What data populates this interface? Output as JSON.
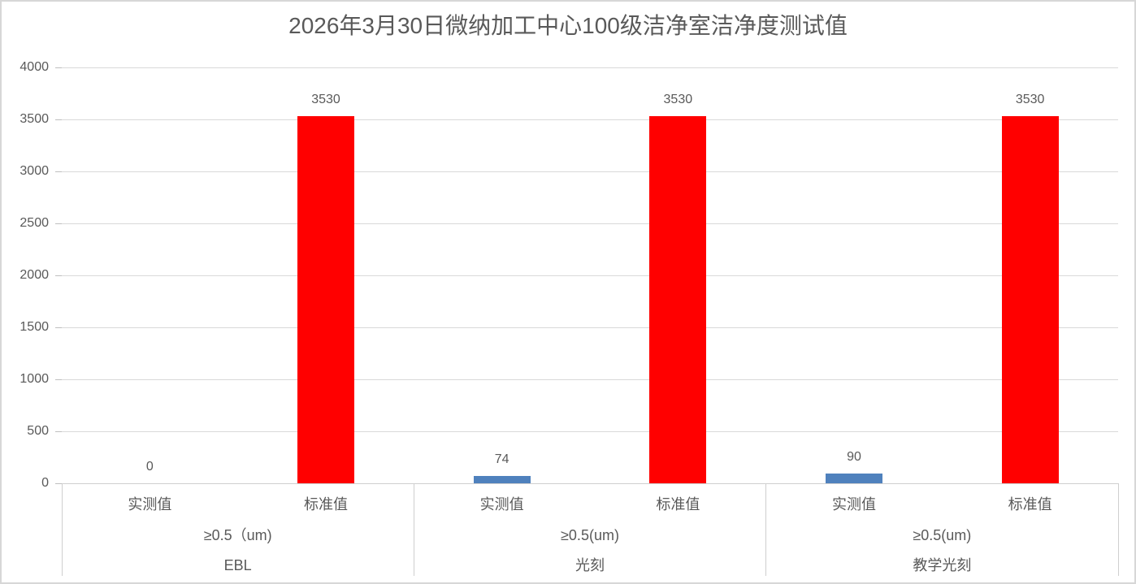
{
  "chart_data": {
    "type": "bar",
    "title": "2026年3月30日微纳加工中心100级洁净室洁净度测试值",
    "ylabel": "",
    "xlabel": "",
    "ylim": [
      0,
      4000
    ],
    "yticks": [
      0,
      500,
      1000,
      1500,
      2000,
      2500,
      3000,
      3500,
      4000
    ],
    "grid": true,
    "legend_position": "none",
    "data_labels_shown": true,
    "series": [
      {
        "name": "实测值",
        "color": "#4F81BD",
        "values": [
          0,
          74,
          90
        ]
      },
      {
        "name": "标准值",
        "color": "#FF0000",
        "values": [
          3530,
          3530,
          3530
        ]
      }
    ],
    "groups": [
      {
        "name": "EBL",
        "sublabel": "≥0.5（um)",
        "bar_labels": [
          "实测值",
          "标准值"
        ],
        "values": [
          0,
          3530
        ]
      },
      {
        "name": "光刻",
        "sublabel": "≥0.5(um)",
        "bar_labels": [
          "实测值",
          "标准值"
        ],
        "values": [
          74,
          3530
        ]
      },
      {
        "name": "教学光刻",
        "sublabel": "≥0.5(um)",
        "bar_labels": [
          "实测值",
          "标准值"
        ],
        "values": [
          90,
          3530
        ]
      }
    ]
  },
  "colors": {
    "measured_bar": "#4F81BD",
    "standard_bar": "#FF0000",
    "gridline": "#D9D9D9",
    "axis": "#CFCFCF",
    "text": "#595959",
    "border": "#D7D7D7"
  }
}
